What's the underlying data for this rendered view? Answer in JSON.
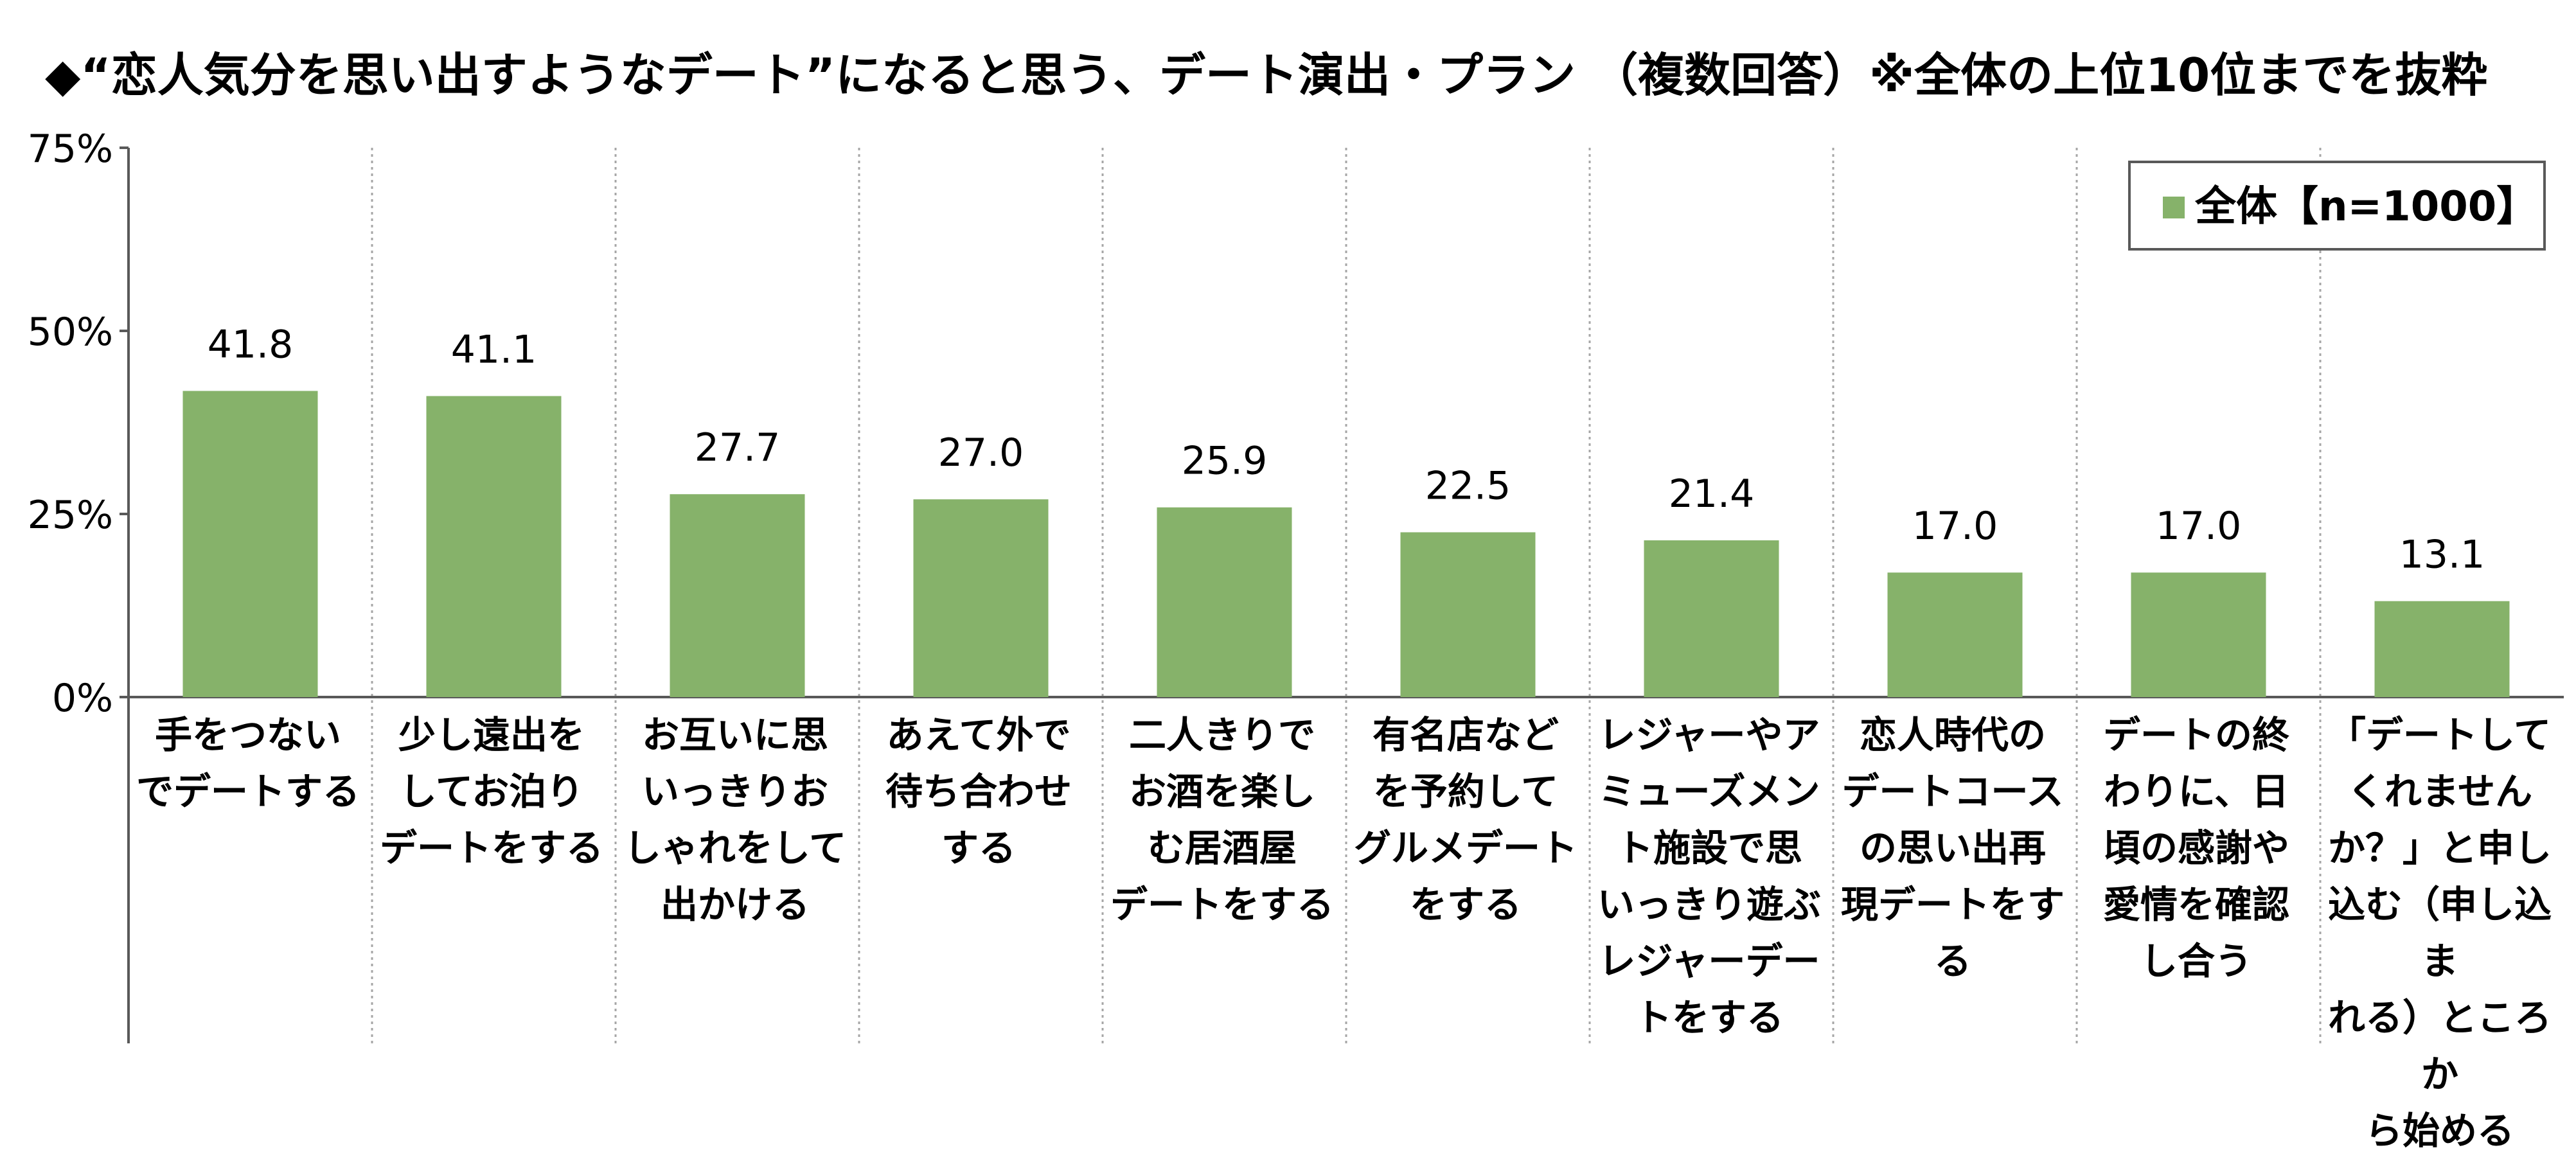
{
  "chart_data": {
    "type": "bar",
    "title": "◆“恋人気分を思い出すようなデート”になると思う、デート演出・プラン （複数回答）※全体の上位10位までを抜粋",
    "ylim": [
      0,
      75
    ],
    "yticks": [
      "0%",
      "25%",
      "50%",
      "75%"
    ],
    "ytick_values": [
      0,
      25,
      50,
      75
    ],
    "legend_position": "top-right",
    "grid": "vertical dotted separators",
    "series": [
      {
        "name": "全体【n=1000】",
        "color": "#86b26a",
        "values": [
          41.8,
          41.1,
          27.7,
          27.0,
          25.9,
          22.5,
          21.4,
          17.0,
          17.0,
          13.1
        ]
      }
    ],
    "value_labels": [
      "41.8",
      "41.1",
      "27.7",
      "27.0",
      "25.9",
      "22.5",
      "21.4",
      "17.0",
      "17.0",
      "13.1"
    ],
    "categories": [
      "手をつない\nでデートする",
      "少し遠出を\nしてお泊り\nデートをする",
      "お互いに思\nいっきりお\nしゃれをして\n出かける",
      "あえて外で\n待ち合わせ\nする",
      "二人きりで\nお酒を楽し\nむ居酒屋\nデートをする",
      "有名店など\nを予約して\nグルメデート\nをする",
      "レジャーやア\nミューズメン\nト施設で思\nいっきり遊ぶ\nレジャーデー\nトをする",
      "恋人時代の\nデートコース\nの思い出再\n現デートをす\nる",
      "デートの終\nわりに、日\n頃の感謝や\n愛情を確認\nし合う",
      "「デートして\nくれません\nか？」と申し\n込む（申し込ま\nれる）ところか\nら始める"
    ]
  }
}
